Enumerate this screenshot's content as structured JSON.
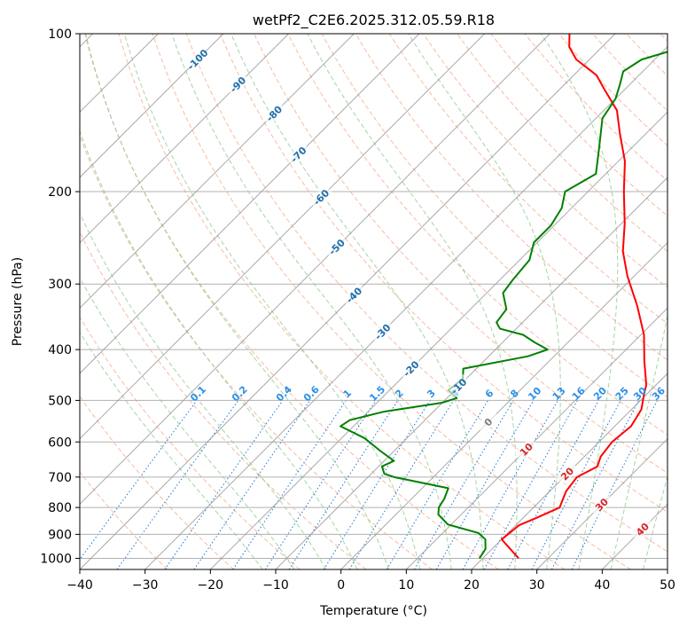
{
  "chart_data": {
    "type": "line",
    "title": "wetPf2_C2E6.2025.312.05.59.R18",
    "xlabel": "Temperature (°C)",
    "ylabel": "Pressure (hPa)",
    "xlim": [
      -40,
      50
    ],
    "ylim": [
      1050,
      100
    ],
    "skew_degrees": 45,
    "x_ticks": [
      -40,
      -30,
      -20,
      -10,
      0,
      10,
      20,
      30,
      40,
      50
    ],
    "y_ticks": [
      100,
      200,
      300,
      400,
      500,
      600,
      700,
      800,
      900,
      1000
    ],
    "grid": true,
    "colors": {
      "temperature": "#ff0000",
      "dewpoint": "#008000",
      "isotherm": "#9a9a9a",
      "dry_adiabat": "#f4a582",
      "moist_adiabat": "#8fc98f",
      "mixing_ratio": "#1f77d4",
      "isotherm_label": "#1f6fae",
      "mixing_ratio_label": "#2b8fe8",
      "dry_adiabat_label": "#d62728",
      "zero_label": "#808080"
    },
    "series": [
      {
        "name": "Temperature",
        "color": "#ff0000",
        "points": [
          [
            25.5,
            1000
          ],
          [
            20.0,
            920
          ],
          [
            20.5,
            865
          ],
          [
            22.0,
            838
          ],
          [
            24.0,
            800
          ],
          [
            22.5,
            745
          ],
          [
            22.0,
            700
          ],
          [
            23.5,
            668
          ],
          [
            22.5,
            640
          ],
          [
            22.0,
            600
          ],
          [
            22.5,
            560
          ],
          [
            21.5,
            520
          ],
          [
            19.5,
            485
          ],
          [
            18.5,
            467
          ],
          [
            14.5,
            420
          ],
          [
            10.5,
            375
          ],
          [
            5.0,
            330
          ],
          [
            -1.0,
            290
          ],
          [
            -5.5,
            260
          ],
          [
            -9.5,
            230
          ],
          [
            -14.5,
            200
          ],
          [
            -19.0,
            175
          ],
          [
            -24.0,
            155
          ],
          [
            -28.0,
            140
          ],
          [
            -33.0,
            128
          ],
          [
            -36.5,
            120
          ],
          [
            -42.0,
            112
          ],
          [
            -45.0,
            106
          ],
          [
            -47.0,
            100
          ]
        ]
      },
      {
        "name": "Dewpoint",
        "color": "#008000",
        "points": [
          [
            19.5,
            1000
          ],
          [
            19.0,
            960
          ],
          [
            17.5,
            920
          ],
          [
            15.5,
            895
          ],
          [
            9.5,
            862
          ],
          [
            6.5,
            825
          ],
          [
            5.5,
            800
          ],
          [
            5.0,
            770
          ],
          [
            4.0,
            735
          ],
          [
            -6.0,
            700
          ],
          [
            -8.0,
            690
          ],
          [
            -9.5,
            668
          ],
          [
            -8.5,
            652
          ],
          [
            -12.0,
            625
          ],
          [
            -16.5,
            590
          ],
          [
            -22.0,
            560
          ],
          [
            -21.5,
            545
          ],
          [
            -17.5,
            525
          ],
          [
            -10.0,
            505
          ],
          [
            -8.5,
            495
          ],
          [
            -11.0,
            478
          ],
          [
            -10.5,
            455
          ],
          [
            -12.0,
            435
          ],
          [
            -4.0,
            412
          ],
          [
            -2.0,
            400
          ],
          [
            -5.0,
            388
          ],
          [
            -8.0,
            375
          ],
          [
            -12.5,
            365
          ],
          [
            -14.0,
            355
          ],
          [
            -14.5,
            335
          ],
          [
            -17.5,
            312
          ],
          [
            -18.0,
            295
          ],
          [
            -18.5,
            270
          ],
          [
            -20.5,
            250
          ],
          [
            -20.5,
            232
          ],
          [
            -21.5,
            215
          ],
          [
            -23.5,
            200
          ],
          [
            -21.5,
            185
          ],
          [
            -25.0,
            165
          ],
          [
            -29.0,
            145
          ],
          [
            -30.0,
            133
          ],
          [
            -31.5,
            125
          ],
          [
            -33.0,
            118
          ],
          [
            -32.0,
            112
          ],
          [
            -29.0,
            108
          ],
          [
            -24.5,
            105
          ],
          [
            -24.0,
            100
          ]
        ]
      }
    ],
    "isotherm_labels": [
      {
        "text": "-100",
        "value": -100
      },
      {
        "text": "-90",
        "value": -90
      },
      {
        "text": "-80",
        "value": -80
      },
      {
        "text": "-70",
        "value": -70
      },
      {
        "text": "-60",
        "value": -60
      },
      {
        "text": "-50",
        "value": -50
      },
      {
        "text": "-40",
        "value": -40
      },
      {
        "text": "-30",
        "value": -30
      },
      {
        "text": "-20",
        "value": -20
      },
      {
        "text": "-10",
        "value": -10
      },
      {
        "text": "0",
        "value": 0
      },
      {
        "text": "10",
        "value": 10
      },
      {
        "text": "20",
        "value": 20
      },
      {
        "text": "30",
        "value": 30
      },
      {
        "text": "40",
        "value": 40
      }
    ],
    "mixing_ratio_labels": [
      "0.1",
      "0.2",
      "0.4",
      "0.6",
      "1",
      "1.5",
      "2",
      "3",
      "4",
      "6",
      "8",
      "10",
      "13",
      "16",
      "20",
      "25",
      "30",
      "36"
    ]
  }
}
